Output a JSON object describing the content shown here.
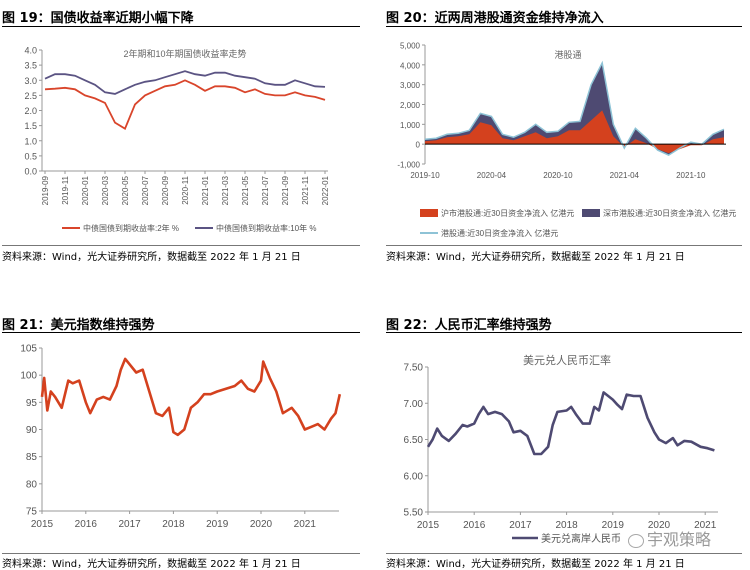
{
  "figures": [
    {
      "label": "图 19：国债收益率近期小幅下降",
      "source": "资料来源：Wind，光大证券研究所，数据截至 2022 年 1 月 21 日"
    },
    {
      "label": "图 20：近两周港股通资金维持净流入",
      "source": "资料来源：Wind，光大证券研究所，数据截至 2022 年 1 月 21 日"
    },
    {
      "label": "图 21：美元指数维持强势",
      "source": "资料来源：Wind，光大证券研究所，数据截至 2022 年 1 月 21 日"
    },
    {
      "label": "图 22：人民币汇率维持强势",
      "source": "资料来源：Wind，光大证券研究所，数据截至 2022 年 1 月 21 日"
    }
  ],
  "watermark": "宇观策略",
  "chart_data": [
    {
      "type": "line",
      "title": "2年期和10年期国债收益率走势",
      "xlabel": "",
      "ylabel": "",
      "ylim": [
        0,
        4.0
      ],
      "yticks": [
        "0.0",
        "0.5",
        "1.0",
        "1.5",
        "2.0",
        "2.5",
        "3.0",
        "3.5",
        "4.0"
      ],
      "xticks": [
        "2019-09",
        "2019-11",
        "2020-01",
        "2020-03",
        "2020-05",
        "2020-07",
        "2020-09",
        "2020-11",
        "2021-01",
        "2021-03",
        "2021-05",
        "2021-07",
        "2021-09",
        "2021-11",
        "2022-01"
      ],
      "x_note": "monthly from 2019-09 to 2022-01",
      "legend_position": "bottom",
      "series": [
        {
          "name": "中债国债到期收益率:2年 %",
          "color": "#D9452B",
          "values": [
            2.7,
            2.72,
            2.75,
            2.7,
            2.5,
            2.4,
            2.25,
            1.6,
            1.4,
            2.2,
            2.5,
            2.65,
            2.8,
            2.85,
            3.0,
            2.85,
            2.65,
            2.8,
            2.8,
            2.75,
            2.6,
            2.7,
            2.55,
            2.5,
            2.5,
            2.6,
            2.5,
            2.45,
            2.35
          ]
        },
        {
          "name": "中债国债到期收益率:10年 %",
          "color": "#5B5483",
          "values": [
            3.05,
            3.2,
            3.2,
            3.15,
            3.0,
            2.85,
            2.6,
            2.55,
            2.7,
            2.85,
            2.95,
            3.0,
            3.1,
            3.2,
            3.3,
            3.2,
            3.15,
            3.25,
            3.25,
            3.15,
            3.1,
            3.05,
            2.9,
            2.85,
            2.85,
            3.0,
            2.9,
            2.8,
            2.78
          ]
        }
      ]
    },
    {
      "type": "area",
      "title": "港股通",
      "xlabel": "",
      "ylabel": "",
      "ylim": [
        -1000,
        5000
      ],
      "yticks": [
        "-1,000",
        "0",
        "1,000",
        "2,000",
        "3,000",
        "4,000",
        "5,000"
      ],
      "xticks": [
        "2019-10",
        "2020-04",
        "2020-10",
        "2021-04",
        "2021-10"
      ],
      "x_note": "monthly from 2019-10 to 2022-01",
      "legend_position": "bottom",
      "series": [
        {
          "name": "沪市港股通:近30日资金净流入 亿港元",
          "color": "#D4411E",
          "values": [
            150,
            200,
            350,
            400,
            500,
            1100,
            950,
            300,
            200,
            400,
            600,
            300,
            400,
            700,
            700,
            1200,
            1700,
            400,
            -150,
            250,
            50,
            -250,
            -450,
            -250,
            -50,
            -50,
            250,
            350
          ]
        },
        {
          "name": "深市港股通:近30日资金净流入 亿港元",
          "color": "#4E4A72",
          "values": [
            100,
            100,
            150,
            150,
            200,
            450,
            450,
            200,
            150,
            200,
            400,
            300,
            250,
            400,
            450,
            1800,
            2400,
            600,
            -50,
            550,
            250,
            -50,
            -100,
            50,
            150,
            50,
            250,
            400
          ]
        },
        {
          "name": "港股通:近30日资金净流入 亿港元",
          "color": "#8EC3D6",
          "values": [
            250,
            300,
            500,
            550,
            700,
            1550,
            1400,
            500,
            350,
            600,
            1000,
            600,
            650,
            1100,
            1150,
            3000,
            4100,
            1000,
            -200,
            800,
            300,
            -300,
            -550,
            -200,
            100,
            0,
            500,
            750
          ]
        }
      ]
    },
    {
      "type": "line",
      "title": "",
      "xlabel": "",
      "ylabel": "",
      "ylim": [
        75,
        105
      ],
      "xlim": [
        2015,
        2021.8
      ],
      "yticks": [
        "75",
        "80",
        "85",
        "90",
        "95",
        "100",
        "105"
      ],
      "xticks": [
        "2015",
        "2016",
        "2017",
        "2018",
        "2019",
        "2020",
        "2021"
      ],
      "series": [
        {
          "name": "美元指数",
          "color": "#D4411E",
          "x": [
            2015.0,
            2015.05,
            2015.12,
            2015.2,
            2015.3,
            2015.45,
            2015.6,
            2015.7,
            2015.85,
            2016.0,
            2016.1,
            2016.25,
            2016.4,
            2016.55,
            2016.7,
            2016.8,
            2016.9,
            2017.0,
            2017.15,
            2017.3,
            2017.45,
            2017.6,
            2017.75,
            2017.9,
            2018.0,
            2018.1,
            2018.25,
            2018.4,
            2018.55,
            2018.7,
            2018.85,
            2019.0,
            2019.2,
            2019.4,
            2019.55,
            2019.7,
            2019.85,
            2020.0,
            2020.05,
            2020.2,
            2020.35,
            2020.5,
            2020.7,
            2020.85,
            2021.0,
            2021.15,
            2021.3,
            2021.45,
            2021.6,
            2021.7,
            2021.8
          ],
          "values": [
            96,
            99.5,
            93.5,
            97,
            96,
            94,
            99,
            98.5,
            99,
            95,
            93,
            95.5,
            96,
            95.5,
            98,
            101,
            103,
            102,
            100.5,
            101,
            97,
            93,
            92.5,
            94,
            89.5,
            89,
            90,
            94,
            95,
            96.5,
            96.5,
            97,
            97.5,
            98,
            99,
            97.5,
            97,
            99,
            102.5,
            99.5,
            97,
            93,
            94,
            92.5,
            90,
            90.5,
            91,
            90,
            92,
            93,
            96.5
          ]
        }
      ]
    },
    {
      "type": "line",
      "title": "美元兑人民币汇率",
      "xlabel": "",
      "ylabel": "",
      "ylim": [
        5.5,
        7.5
      ],
      "xlim": [
        2015,
        2021.3
      ],
      "yticks": [
        "5.50",
        "6.00",
        "6.50",
        "7.00",
        "7.50"
      ],
      "xticks": [
        "2015",
        "2016",
        "2017",
        "2018",
        "2019",
        "2020",
        "2021"
      ],
      "legend_position": "bottom",
      "series": [
        {
          "name": "美元兑离岸人民币",
          "color": "#4E4A72",
          "x": [
            2015.0,
            2015.1,
            2015.2,
            2015.3,
            2015.45,
            2015.6,
            2015.75,
            2015.85,
            2016.0,
            2016.1,
            2016.2,
            2016.3,
            2016.45,
            2016.6,
            2016.75,
            2016.85,
            2017.0,
            2017.15,
            2017.3,
            2017.45,
            2017.6,
            2017.7,
            2017.8,
            2018.0,
            2018.1,
            2018.2,
            2018.35,
            2018.5,
            2018.6,
            2018.7,
            2018.8,
            2018.9,
            2019.0,
            2019.1,
            2019.2,
            2019.3,
            2019.45,
            2019.6,
            2019.75,
            2019.9,
            2020.0,
            2020.15,
            2020.3,
            2020.4,
            2020.55,
            2020.7,
            2020.9,
            2021.05,
            2021.2
          ],
          "values": [
            6.4,
            6.5,
            6.65,
            6.55,
            6.48,
            6.58,
            6.7,
            6.68,
            6.72,
            6.85,
            6.95,
            6.85,
            6.88,
            6.85,
            6.75,
            6.6,
            6.62,
            6.55,
            6.3,
            6.3,
            6.4,
            6.7,
            6.88,
            6.9,
            6.95,
            6.85,
            6.72,
            6.72,
            6.95,
            6.9,
            7.15,
            7.1,
            7.05,
            6.98,
            6.92,
            7.12,
            7.1,
            7.1,
            6.8,
            6.6,
            6.5,
            6.45,
            6.52,
            6.42,
            6.48,
            6.47,
            6.4,
            6.38,
            6.35
          ]
        }
      ]
    }
  ]
}
